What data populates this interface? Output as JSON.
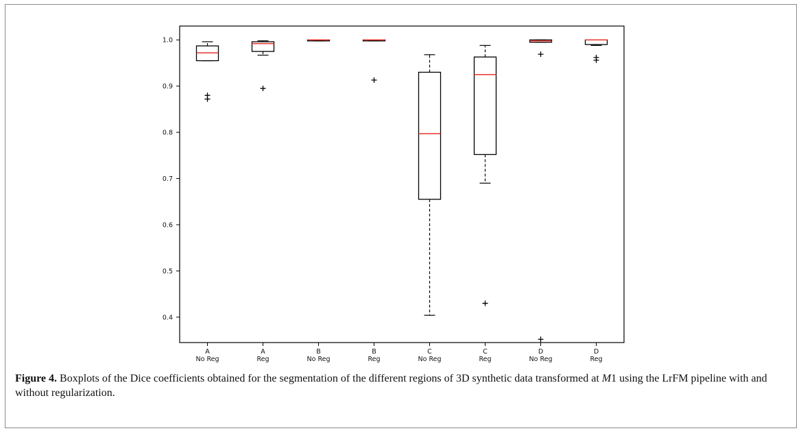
{
  "chart_data": {
    "type": "boxplot",
    "title": "",
    "xlabel": "",
    "ylabel": "",
    "ylim": [
      0.345,
      1.03
    ],
    "yticks": [
      "0.4",
      "0.5",
      "0.6",
      "0.7",
      "0.8",
      "0.9",
      "1.0"
    ],
    "grid": false,
    "colors": {
      "box": "#000000",
      "median": "#e8322a"
    },
    "categories": [
      {
        "group": "A",
        "mode": "No Reg",
        "whisker_low": 0.955,
        "q1": 0.955,
        "median": 0.972,
        "q3": 0.987,
        "whisker_high": 0.996,
        "outliers": [
          0.872,
          0.88
        ]
      },
      {
        "group": "A",
        "mode": "Reg",
        "whisker_low": 0.967,
        "q1": 0.975,
        "median": 0.992,
        "q3": 0.996,
        "whisker_high": 0.998,
        "outliers": [
          0.895
        ]
      },
      {
        "group": "B",
        "mode": "No Reg",
        "whisker_low": 0.999,
        "q1": 0.999,
        "median": 1.0,
        "q3": 1.0,
        "whisker_high": 1.0,
        "outliers": []
      },
      {
        "group": "B",
        "mode": "Reg",
        "whisker_low": 0.999,
        "q1": 0.999,
        "median": 1.0,
        "q3": 1.0,
        "whisker_high": 1.0,
        "outliers": [
          0.913
        ]
      },
      {
        "group": "C",
        "mode": "No Reg",
        "whisker_low": 0.404,
        "q1": 0.655,
        "median": 0.797,
        "q3": 0.93,
        "whisker_high": 0.968,
        "outliers": []
      },
      {
        "group": "C",
        "mode": "Reg",
        "whisker_low": 0.69,
        "q1": 0.752,
        "median": 0.925,
        "q3": 0.963,
        "whisker_high": 0.988,
        "outliers": [
          0.43
        ]
      },
      {
        "group": "D",
        "mode": "No Reg",
        "whisker_low": 0.995,
        "q1": 0.995,
        "median": 0.998,
        "q3": 1.0,
        "whisker_high": 1.0,
        "outliers": [
          0.969,
          0.352
        ]
      },
      {
        "group": "D",
        "mode": "Reg",
        "whisker_low": 0.988,
        "q1": 0.99,
        "median": 1.0,
        "q3": 1.0,
        "whisker_high": 1.0,
        "outliers": [
          0.962,
          0.956
        ]
      }
    ]
  },
  "caption": {
    "label": "Figure 4.",
    "text_before_math": " Boxplots of the Dice coefficients obtained for the segmentation of the different regions of 3D synthetic data transformed at ",
    "math": "M",
    "text_after_math": "1 using the LrFM pipeline with and without regularization."
  }
}
